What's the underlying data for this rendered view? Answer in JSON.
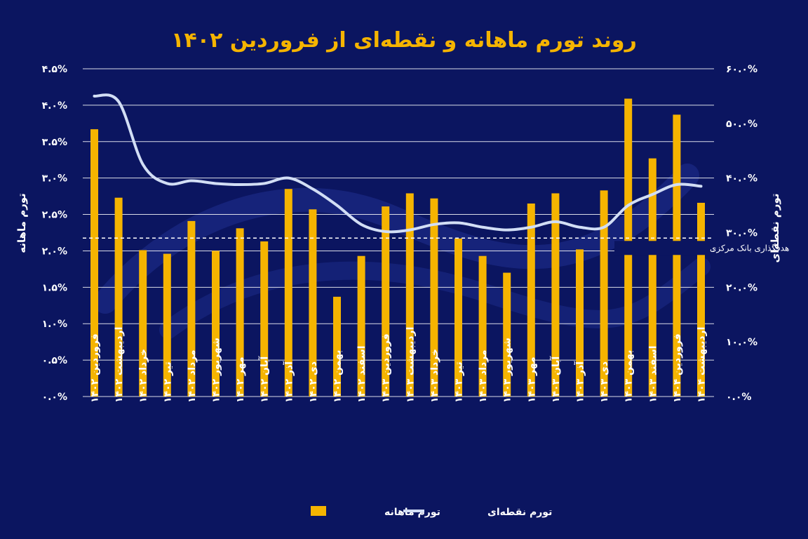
{
  "chart_data": {
    "type": "bar",
    "title": "روند تورم ماهانه و نقطه‌ای از فروردین ۱۴۰۲",
    "ylabel_left": "تورم ماهانه",
    "ylabel_right": "تورم نقطه‌ای",
    "y_left_ticks": [
      "۰.۰%",
      "۰.۵%",
      "۱.۰%",
      "۱.۵%",
      "۲.۰%",
      "۲.۵%",
      "۳.۰%",
      "۳.۵%",
      "۴.۰%",
      "۴.۵%"
    ],
    "y_right_ticks": [
      "۰.۰%",
      "۱۰.۰%",
      "۲۰.۰%",
      "۳۰.۰%",
      "۴۰.۰%",
      "۵۰.۰%",
      "۶۰.۰%"
    ],
    "ylim_left": [
      0,
      4.5
    ],
    "ylim_right": [
      0,
      60
    ],
    "grid": true,
    "legend_position": "bottom-center",
    "colors": {
      "background": "#0b1560",
      "bar": "#f5b400",
      "line": "#d2def5",
      "grid": "#ffffff",
      "title": "#f5b400"
    },
    "categories": [
      "فروردین ۱۴۰۲",
      "اردیبهشت ۱۴۰۲",
      "خرداد ۱۴۰۲",
      "تیر ۱۴۰۲",
      "مرداد ۱۴۰۲",
      "شهریور ۱۴۰۲",
      "مهر ۱۴۰۲",
      "آبان ۱۴۰۲",
      "آذر ۱۴۰۲",
      "دی ۱۴۰۲",
      "بهمن ۱۴۰۲",
      "اسفند ۱۴۰۲",
      "فروردین ۱۴۰۳",
      "اردیبهشت ۱۴۰۳",
      "خرداد ۱۴۰۳",
      "تیر ۱۴۰۳",
      "مرداد ۱۴۰۳",
      "شهریور ۱۴۰۳",
      "مهر ۱۴۰۳",
      "آبان ۱۴۰۳",
      "آذر ۱۴۰۳",
      "دی ۱۴۰۳",
      "بهمن ۱۴۰۳",
      "اسفند ۱۴۰۳",
      "فروردین ۱۴۰۴",
      "اردیبهشت ۱۴۰۴"
    ],
    "series": [
      {
        "name": "تورم ماهانه",
        "type": "bar",
        "axis": "left",
        "values": [
          3.67,
          2.73,
          2.01,
          1.96,
          2.41,
          2.0,
          2.31,
          2.13,
          2.85,
          2.57,
          1.37,
          1.93,
          2.61,
          2.79,
          2.72,
          2.17,
          1.93,
          1.7,
          2.65,
          2.79,
          2.02,
          2.83,
          4.09,
          3.27,
          3.87,
          2.66
        ]
      },
      {
        "name": "تورم نقطه‌ای",
        "type": "line",
        "axis": "right",
        "values": [
          55.0,
          54.0,
          42.5,
          39.0,
          39.5,
          39.0,
          38.8,
          39.0,
          40.0,
          38.0,
          35.0,
          31.5,
          30.2,
          30.5,
          31.5,
          31.8,
          31.0,
          30.5,
          31.0,
          32.0,
          31.0,
          31.0,
          35.0,
          37.0,
          38.8,
          38.5
        ]
      }
    ],
    "target_line": {
      "value": 29.0,
      "axis": "right",
      "label": "هدفگذاری بانک مرکزی"
    }
  }
}
